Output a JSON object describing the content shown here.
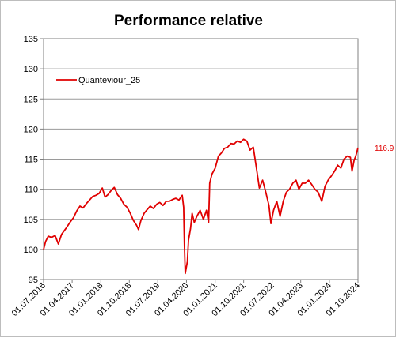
{
  "chart_data": {
    "type": "line",
    "title": "Performance relative",
    "xlabel": "",
    "ylabel": "",
    "ylim": [
      95,
      135
    ],
    "yticks": [
      95,
      100,
      105,
      110,
      115,
      120,
      125,
      130,
      135
    ],
    "x_range": [
      "2016-07-01",
      "2024-10-01"
    ],
    "xticks": [
      {
        "date": "2016-07-01",
        "label": "01.07.2016"
      },
      {
        "date": "2017-04-01",
        "label": "01.04.2017"
      },
      {
        "date": "2018-01-01",
        "label": "01.01.2018"
      },
      {
        "date": "2018-10-01",
        "label": "01.10.2018"
      },
      {
        "date": "2019-07-01",
        "label": "01.07.2019"
      },
      {
        "date": "2020-04-01",
        "label": "01.04.2020"
      },
      {
        "date": "2021-01-01",
        "label": "01.01.2021"
      },
      {
        "date": "2021-10-01",
        "label": "01.10.2021"
      },
      {
        "date": "2022-07-01",
        "label": "01.07.2022"
      },
      {
        "date": "2023-04-01",
        "label": "01.04.2023"
      },
      {
        "date": "2024-01-01",
        "label": "01.01.2024"
      },
      {
        "date": "2024-10-01",
        "label": "01.10.2024"
      }
    ],
    "grid": {
      "x": false,
      "y": true
    },
    "legend_position": "top-left",
    "line_color": "#e00000",
    "series": [
      {
        "name": "Quanteviour_25",
        "last_value_label": "116.9",
        "points": [
          [
            "2016-07-01",
            100.0
          ],
          [
            "2016-07-20",
            101.3
          ],
          [
            "2016-08-15",
            102.2
          ],
          [
            "2016-09-15",
            102.0
          ],
          [
            "2016-10-20",
            102.3
          ],
          [
            "2016-11-20",
            100.9
          ],
          [
            "2016-12-20",
            102.5
          ],
          [
            "2017-02-01",
            103.5
          ],
          [
            "2017-03-15",
            104.6
          ],
          [
            "2017-04-15",
            105.3
          ],
          [
            "2017-05-15",
            106.4
          ],
          [
            "2017-06-15",
            107.2
          ],
          [
            "2017-07-15",
            106.9
          ],
          [
            "2017-08-15",
            107.6
          ],
          [
            "2017-09-15",
            108.2
          ],
          [
            "2017-10-15",
            108.8
          ],
          [
            "2017-11-15",
            109.0
          ],
          [
            "2017-12-15",
            109.3
          ],
          [
            "2018-01-15",
            110.2
          ],
          [
            "2018-02-10",
            108.7
          ],
          [
            "2018-03-10",
            109.1
          ],
          [
            "2018-04-10",
            109.8
          ],
          [
            "2018-05-10",
            110.3
          ],
          [
            "2018-06-10",
            109.1
          ],
          [
            "2018-07-10",
            108.5
          ],
          [
            "2018-08-10",
            107.5
          ],
          [
            "2018-09-10",
            107.0
          ],
          [
            "2018-10-10",
            106.0
          ],
          [
            "2018-11-10",
            104.8
          ],
          [
            "2018-12-10",
            104.0
          ],
          [
            "2018-12-28",
            103.3
          ],
          [
            "2019-01-20",
            104.8
          ],
          [
            "2019-02-20",
            106.0
          ],
          [
            "2019-03-20",
            106.6
          ],
          [
            "2019-04-20",
            107.2
          ],
          [
            "2019-05-20",
            106.8
          ],
          [
            "2019-06-20",
            107.5
          ],
          [
            "2019-07-20",
            107.8
          ],
          [
            "2019-08-20",
            107.3
          ],
          [
            "2019-09-20",
            108.0
          ],
          [
            "2019-10-20",
            108.0
          ],
          [
            "2019-11-20",
            108.3
          ],
          [
            "2019-12-20",
            108.5
          ],
          [
            "2020-01-20",
            108.2
          ],
          [
            "2020-02-20",
            109.0
          ],
          [
            "2020-03-05",
            107.0
          ],
          [
            "2020-03-12",
            101.0
          ],
          [
            "2020-03-20",
            96.0
          ],
          [
            "2020-04-10",
            98.0
          ],
          [
            "2020-04-20",
            101.5
          ],
          [
            "2020-05-10",
            103.5
          ],
          [
            "2020-05-25",
            106.0
          ],
          [
            "2020-06-15",
            104.5
          ],
          [
            "2020-07-10",
            105.5
          ],
          [
            "2020-08-10",
            106.5
          ],
          [
            "2020-09-10",
            105.0
          ],
          [
            "2020-10-10",
            106.5
          ],
          [
            "2020-10-30",
            104.5
          ],
          [
            "2020-11-10",
            111.0
          ],
          [
            "2020-12-01",
            112.5
          ],
          [
            "2021-01-01",
            113.5
          ],
          [
            "2021-02-01",
            115.5
          ],
          [
            "2021-03-01",
            116.0
          ],
          [
            "2021-04-01",
            116.8
          ],
          [
            "2021-05-01",
            117.0
          ],
          [
            "2021-06-01",
            117.6
          ],
          [
            "2021-07-01",
            117.5
          ],
          [
            "2021-08-01",
            118.0
          ],
          [
            "2021-09-01",
            117.8
          ],
          [
            "2021-10-01",
            118.3
          ],
          [
            "2021-11-01",
            118.0
          ],
          [
            "2021-12-01",
            116.5
          ],
          [
            "2022-01-01",
            117.0
          ],
          [
            "2022-02-01",
            113.5
          ],
          [
            "2022-03-01",
            110.2
          ],
          [
            "2022-04-01",
            111.5
          ],
          [
            "2022-05-01",
            109.5
          ],
          [
            "2022-06-01",
            107.3
          ],
          [
            "2022-06-20",
            104.3
          ],
          [
            "2022-07-15",
            106.5
          ],
          [
            "2022-08-15",
            108.0
          ],
          [
            "2022-09-15",
            105.5
          ],
          [
            "2022-10-15",
            108.0
          ],
          [
            "2022-11-15",
            109.5
          ],
          [
            "2022-12-15",
            110.0
          ],
          [
            "2023-01-15",
            111.0
          ],
          [
            "2023-02-15",
            111.5
          ],
          [
            "2023-03-15",
            110.0
          ],
          [
            "2023-04-15",
            111.0
          ],
          [
            "2023-05-15",
            111.0
          ],
          [
            "2023-06-15",
            111.5
          ],
          [
            "2023-07-15",
            110.8
          ],
          [
            "2023-08-15",
            110.0
          ],
          [
            "2023-09-15",
            109.5
          ],
          [
            "2023-10-20",
            108.0
          ],
          [
            "2023-11-20",
            110.5
          ],
          [
            "2023-12-20",
            111.5
          ],
          [
            "2024-01-20",
            112.2
          ],
          [
            "2024-02-20",
            113.0
          ],
          [
            "2024-03-20",
            114.0
          ],
          [
            "2024-04-20",
            113.5
          ],
          [
            "2024-05-20",
            115.0
          ],
          [
            "2024-06-20",
            115.5
          ],
          [
            "2024-07-20",
            115.3
          ],
          [
            "2024-08-05",
            113.0
          ],
          [
            "2024-08-25",
            114.8
          ],
          [
            "2024-09-10",
            115.5
          ],
          [
            "2024-09-25",
            116.5
          ],
          [
            "2024-10-01",
            116.9
          ]
        ]
      }
    ]
  }
}
